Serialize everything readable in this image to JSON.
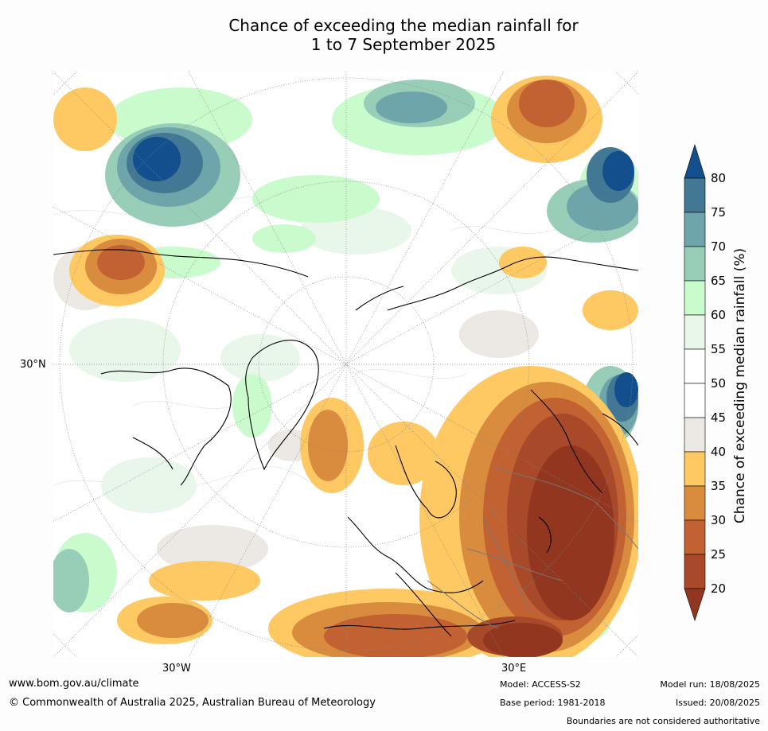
{
  "title": {
    "line1": "Chance of exceeding the median rainfall for",
    "line2": "1 to 7 September 2025"
  },
  "map": {
    "projection": "north-polar-stereographic",
    "lat_label": "30°N",
    "lon_labels": [
      "30°W",
      "30°E"
    ]
  },
  "colorbar": {
    "label": "Chance of exceeding median rainfall (%)",
    "ticks": [
      "20",
      "25",
      "30",
      "35",
      "40",
      "45",
      "50",
      "55",
      "60",
      "65",
      "70",
      "75",
      "80"
    ],
    "colors": {
      "below_20": "#92361f",
      "20_25": "#a8492a",
      "25_30": "#c26233",
      "30_35": "#d98b3e",
      "35_40": "#fec863",
      "40_45": "#ece8e3",
      "45_50": "#ffffff",
      "50_55": "#ffffff",
      "55_60": "#e9f6ea",
      "60_65": "#c9fbcd",
      "65_70": "#98cdb7",
      "70_75": "#6ea5aa",
      "75_80": "#437894",
      "above_80": "#144f8d"
    }
  },
  "footer": {
    "website": "www.bom.gov.au/climate",
    "copyright": "© Commonwealth of Australia 2025, Australian Bureau of Meteorology",
    "model": "Model: ACCESS-S2",
    "base_period": "Base period: 1981-2018",
    "model_run": "Model run: 18/08/2025",
    "issued": "Issued: 20/08/2025",
    "disclaimer": "Boundaries are not considered authoritative"
  }
}
